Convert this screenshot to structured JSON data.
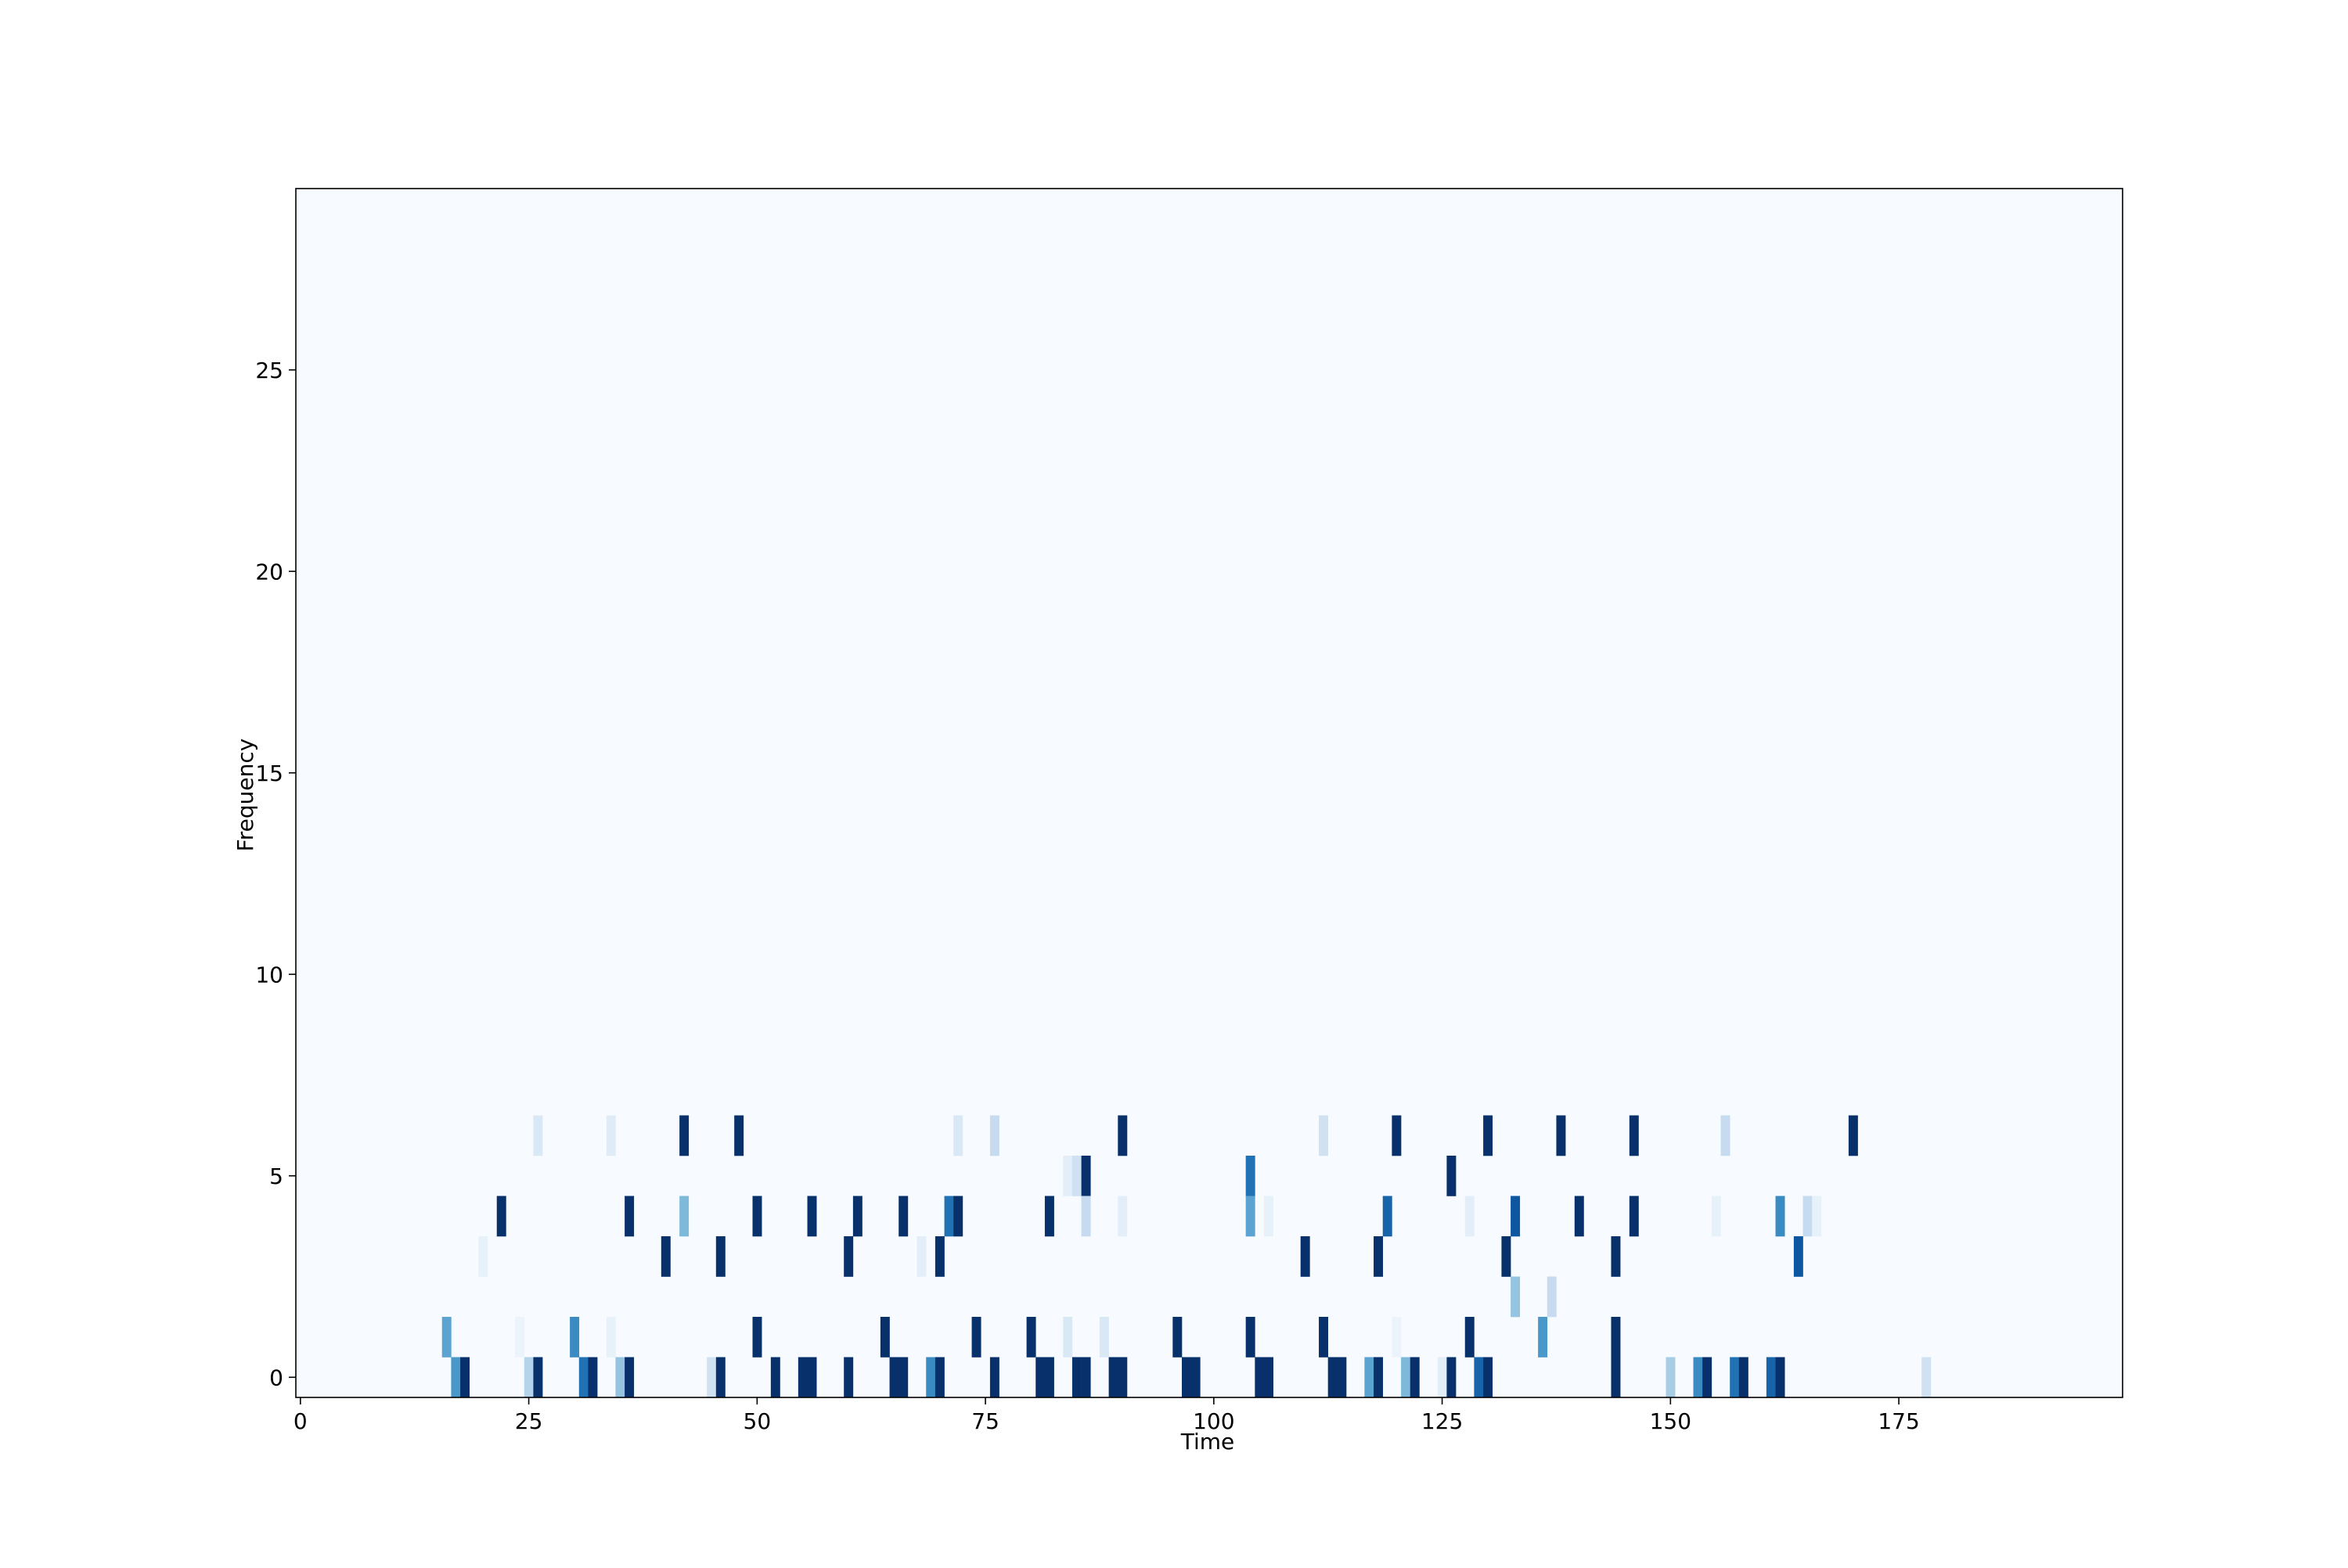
{
  "chart_data": {
    "type": "heatmap",
    "xlabel": "Time",
    "ylabel": "Frequency",
    "xlim": [
      -0.5,
      199.5
    ],
    "ylim": [
      -0.5,
      29.5
    ],
    "x_ticks": [
      0,
      25,
      50,
      75,
      100,
      125,
      150,
      175
    ],
    "y_ticks": [
      0,
      5,
      10,
      15,
      20,
      25
    ],
    "x_tick_labels": [
      "0",
      "25",
      "50",
      "75",
      "100",
      "125",
      "150",
      "175"
    ],
    "y_tick_labels": [
      "0",
      "5",
      "10",
      "15",
      "20",
      "25"
    ],
    "colormap": "Blues",
    "value_range": [
      0,
      1
    ],
    "grid": false,
    "n_time": 200,
    "n_freq": 30,
    "cells": [
      {
        "t": 16,
        "f": 1,
        "v": 0.55
      },
      {
        "t": 17,
        "f": 0,
        "v": 0.6
      },
      {
        "t": 18,
        "f": 0,
        "v": 1
      },
      {
        "t": 20,
        "f": 3,
        "v": 0.08
      },
      {
        "t": 22,
        "f": 4,
        "v": 1
      },
      {
        "t": 24,
        "f": 1,
        "v": 0.06
      },
      {
        "t": 25,
        "f": 0,
        "v": 0.3
      },
      {
        "t": 26,
        "f": 0,
        "v": 1
      },
      {
        "t": 26,
        "f": 6,
        "v": 0.15
      },
      {
        "t": 30,
        "f": 1,
        "v": 0.65
      },
      {
        "t": 31,
        "f": 0,
        "v": 0.75
      },
      {
        "t": 32,
        "f": 0,
        "v": 1
      },
      {
        "t": 34,
        "f": 6,
        "v": 0.12
      },
      {
        "t": 34,
        "f": 1,
        "v": 0.08
      },
      {
        "t": 35,
        "f": 0,
        "v": 0.4
      },
      {
        "t": 36,
        "f": 0,
        "v": 1
      },
      {
        "t": 36,
        "f": 4,
        "v": 1
      },
      {
        "t": 40,
        "f": 3,
        "v": 1
      },
      {
        "t": 42,
        "f": 6,
        "v": 1
      },
      {
        "t": 42,
        "f": 4,
        "v": 0.45
      },
      {
        "t": 45,
        "f": 0,
        "v": 0.2
      },
      {
        "t": 46,
        "f": 0,
        "v": 1
      },
      {
        "t": 46,
        "f": 3,
        "v": 1
      },
      {
        "t": 48,
        "f": 6,
        "v": 1
      },
      {
        "t": 50,
        "f": 1,
        "v": 1
      },
      {
        "t": 50,
        "f": 4,
        "v": 1
      },
      {
        "t": 52,
        "f": 0,
        "v": 1
      },
      {
        "t": 55,
        "f": 0,
        "v": 1
      },
      {
        "t": 56,
        "f": 0,
        "v": 1
      },
      {
        "t": 56,
        "f": 4,
        "v": 1
      },
      {
        "t": 60,
        "f": 0,
        "v": 1
      },
      {
        "t": 60,
        "f": 3,
        "v": 1
      },
      {
        "t": 61,
        "f": 4,
        "v": 1
      },
      {
        "t": 64,
        "f": 1,
        "v": 1
      },
      {
        "t": 65,
        "f": 0,
        "v": 1
      },
      {
        "t": 66,
        "f": 0,
        "v": 1
      },
      {
        "t": 66,
        "f": 4,
        "v": 1
      },
      {
        "t": 68,
        "f": 3,
        "v": 0.1
      },
      {
        "t": 69,
        "f": 0,
        "v": 0.65
      },
      {
        "t": 70,
        "f": 0,
        "v": 1
      },
      {
        "t": 70,
        "f": 3,
        "v": 1
      },
      {
        "t": 71,
        "f": 4,
        "v": 0.75
      },
      {
        "t": 72,
        "f": 4,
        "v": 1
      },
      {
        "t": 72,
        "f": 6,
        "v": 0.15
      },
      {
        "t": 74,
        "f": 1,
        "v": 1
      },
      {
        "t": 76,
        "f": 0,
        "v": 1
      },
      {
        "t": 76,
        "f": 6,
        "v": 0.25
      },
      {
        "t": 80,
        "f": 1,
        "v": 1
      },
      {
        "t": 81,
        "f": 0,
        "v": 1
      },
      {
        "t": 82,
        "f": 0,
        "v": 1
      },
      {
        "t": 82,
        "f": 4,
        "v": 1
      },
      {
        "t": 84,
        "f": 1,
        "v": 0.15
      },
      {
        "t": 84,
        "f": 5,
        "v": 0.1
      },
      {
        "t": 85,
        "f": 0,
        "v": 1
      },
      {
        "t": 85,
        "f": 5,
        "v": 0.2
      },
      {
        "t": 86,
        "f": 0,
        "v": 1
      },
      {
        "t": 86,
        "f": 5,
        "v": 1
      },
      {
        "t": 86,
        "f": 4,
        "v": 0.25
      },
      {
        "t": 88,
        "f": 1,
        "v": 0.15
      },
      {
        "t": 89,
        "f": 0,
        "v": 1
      },
      {
        "t": 90,
        "f": 0,
        "v": 1
      },
      {
        "t": 90,
        "f": 6,
        "v": 1
      },
      {
        "t": 90,
        "f": 4,
        "v": 0.1
      },
      {
        "t": 96,
        "f": 1,
        "v": 1
      },
      {
        "t": 97,
        "f": 0,
        "v": 1
      },
      {
        "t": 98,
        "f": 0,
        "v": 1
      },
      {
        "t": 104,
        "f": 1,
        "v": 1
      },
      {
        "t": 104,
        "f": 5,
        "v": 0.75
      },
      {
        "t": 104,
        "f": 4,
        "v": 0.55
      },
      {
        "t": 105,
        "f": 0,
        "v": 1
      },
      {
        "t": 106,
        "f": 0,
        "v": 1
      },
      {
        "t": 106,
        "f": 4,
        "v": 0.08
      },
      {
        "t": 110,
        "f": 3,
        "v": 1
      },
      {
        "t": 112,
        "f": 1,
        "v": 1
      },
      {
        "t": 112,
        "f": 6,
        "v": 0.2
      },
      {
        "t": 113,
        "f": 0,
        "v": 1
      },
      {
        "t": 114,
        "f": 0,
        "v": 1
      },
      {
        "t": 117,
        "f": 0,
        "v": 0.55
      },
      {
        "t": 118,
        "f": 0,
        "v": 1
      },
      {
        "t": 118,
        "f": 3,
        "v": 1
      },
      {
        "t": 119,
        "f": 4,
        "v": 0.8
      },
      {
        "t": 120,
        "f": 6,
        "v": 1
      },
      {
        "t": 120,
        "f": 1,
        "v": 0.06
      },
      {
        "t": 121,
        "f": 0,
        "v": 0.45
      },
      {
        "t": 122,
        "f": 0,
        "v": 1
      },
      {
        "t": 125,
        "f": 0,
        "v": 0.1
      },
      {
        "t": 126,
        "f": 0,
        "v": 1
      },
      {
        "t": 126,
        "f": 5,
        "v": 1
      },
      {
        "t": 128,
        "f": 1,
        "v": 1
      },
      {
        "t": 128,
        "f": 4,
        "v": 0.1
      },
      {
        "t": 129,
        "f": 0,
        "v": 0.8
      },
      {
        "t": 130,
        "f": 0,
        "v": 1
      },
      {
        "t": 130,
        "f": 6,
        "v": 1
      },
      {
        "t": 132,
        "f": 3,
        "v": 1
      },
      {
        "t": 133,
        "f": 4,
        "v": 0.85
      },
      {
        "t": 133,
        "f": 2,
        "v": 0.4
      },
      {
        "t": 136,
        "f": 1,
        "v": 0.6
      },
      {
        "t": 137,
        "f": 2,
        "v": 0.25
      },
      {
        "t": 138,
        "f": 6,
        "v": 1
      },
      {
        "t": 140,
        "f": 4,
        "v": 1
      },
      {
        "t": 144,
        "f": 0,
        "v": 1
      },
      {
        "t": 144,
        "f": 1,
        "v": 1
      },
      {
        "t": 144,
        "f": 3,
        "v": 1
      },
      {
        "t": 146,
        "f": 4,
        "v": 1
      },
      {
        "t": 146,
        "f": 6,
        "v": 1
      },
      {
        "t": 150,
        "f": 0,
        "v": 0.35
      },
      {
        "t": 153,
        "f": 0,
        "v": 0.65
      },
      {
        "t": 154,
        "f": 0,
        "v": 1
      },
      {
        "t": 155,
        "f": 4,
        "v": 0.08
      },
      {
        "t": 156,
        "f": 6,
        "v": 0.25
      },
      {
        "t": 157,
        "f": 0,
        "v": 0.75
      },
      {
        "t": 158,
        "f": 0,
        "v": 1
      },
      {
        "t": 161,
        "f": 0,
        "v": 0.8
      },
      {
        "t": 162,
        "f": 0,
        "v": 1
      },
      {
        "t": 162,
        "f": 4,
        "v": 0.65
      },
      {
        "t": 164,
        "f": 3,
        "v": 0.85
      },
      {
        "t": 165,
        "f": 4,
        "v": 0.25
      },
      {
        "t": 166,
        "f": 4,
        "v": 0.08
      },
      {
        "t": 170,
        "f": 6,
        "v": 1
      },
      {
        "t": 178,
        "f": 0,
        "v": 0.2
      }
    ]
  }
}
